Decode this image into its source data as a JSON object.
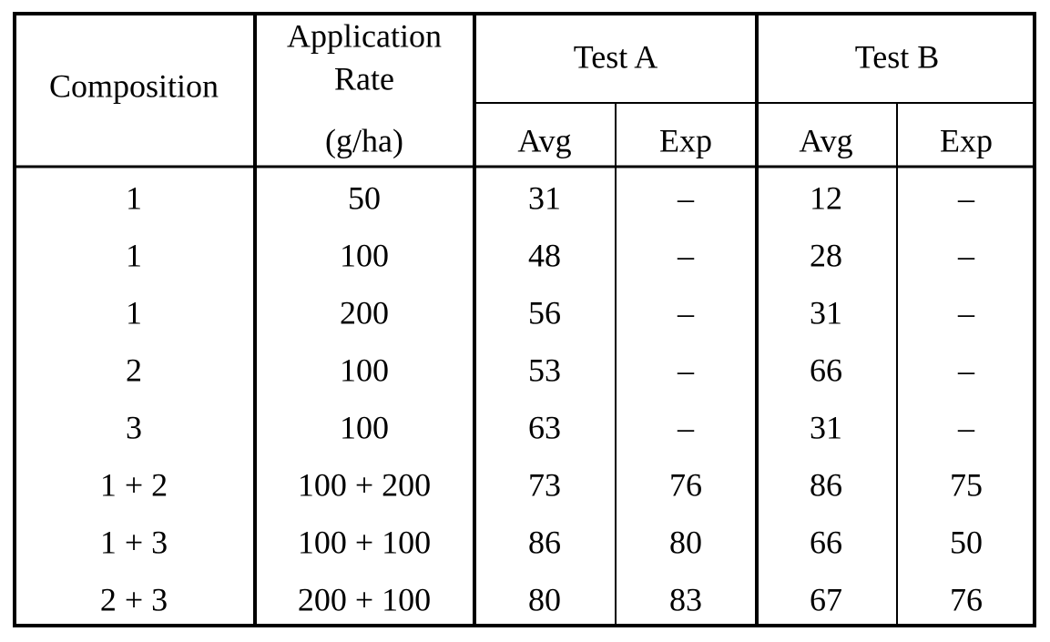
{
  "header": {
    "composition": "Composition",
    "rate": [
      "Application",
      "Rate",
      "(g/ha)"
    ],
    "test_a": "Test A",
    "test_b": "Test B",
    "sub": [
      "Avg",
      "Exp",
      "Avg",
      "Exp"
    ]
  },
  "table": {
    "rows": [
      [
        "1",
        "50",
        "31",
        "–",
        "12",
        "–"
      ],
      [
        "1",
        "100",
        "48",
        "–",
        "28",
        "–"
      ],
      [
        "1",
        "200",
        "56",
        "–",
        "31",
        "–"
      ],
      [
        "2",
        "100",
        "53",
        "–",
        "66",
        "–"
      ],
      [
        "3",
        "100",
        "63",
        "–",
        "31",
        "–"
      ],
      [
        "1 + 2",
        "100 + 200",
        "73",
        "76",
        "86",
        "75"
      ],
      [
        "1 + 3",
        "100 + 100",
        "86",
        "80",
        "66",
        "50"
      ],
      [
        "2 + 3",
        "200 + 100",
        "80",
        "83",
        "67",
        "76"
      ]
    ]
  }
}
